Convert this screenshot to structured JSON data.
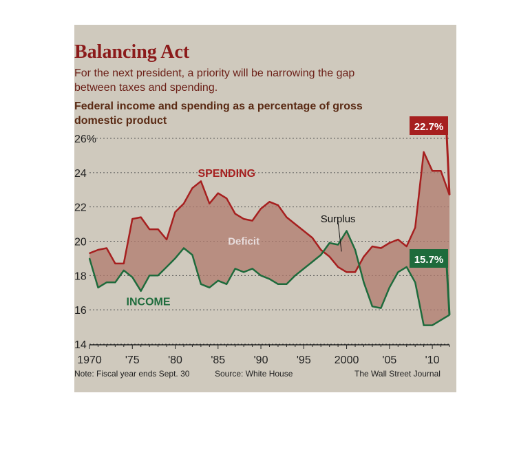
{
  "chart_data": {
    "type": "line",
    "title": "Balancing Act",
    "subtitle": "For the next president, a priority will be narrowing the gap between taxes and spending.",
    "description": "Federal income and spending as a percentage of gross domestic product",
    "y_ticks": [
      "26%",
      "24",
      "22",
      "20",
      "18",
      "16",
      "14"
    ],
    "x_ticks": [
      "1970",
      "'75",
      "'80",
      "'85",
      "'90",
      "'95",
      "2000",
      "'05",
      "'10"
    ],
    "ylim": [
      14,
      26
    ],
    "xlim": [
      1970,
      2012
    ],
    "grid": true,
    "x": [
      1970,
      1971,
      1972,
      1973,
      1974,
      1975,
      1976,
      1977,
      1978,
      1979,
      1980,
      1981,
      1982,
      1983,
      1984,
      1985,
      1986,
      1987,
      1988,
      1989,
      1990,
      1991,
      1992,
      1993,
      1994,
      1995,
      1996,
      1997,
      1998,
      1999,
      2000,
      2001,
      2002,
      2003,
      2004,
      2005,
      2006,
      2007,
      2008,
      2009,
      2010,
      2011,
      2012
    ],
    "series": [
      {
        "name": "SPENDING",
        "color": "#a61f1f",
        "values": [
          19.3,
          19.5,
          19.6,
          18.7,
          18.7,
          21.3,
          21.4,
          20.7,
          20.7,
          20.1,
          21.7,
          22.2,
          23.1,
          23.5,
          22.2,
          22.8,
          22.5,
          21.6,
          21.3,
          21.2,
          21.9,
          22.3,
          22.1,
          21.4,
          21.0,
          20.6,
          20.2,
          19.5,
          19.1,
          18.5,
          18.2,
          18.2,
          19.1,
          19.7,
          19.6,
          19.9,
          20.1,
          19.7,
          20.8,
          25.2,
          24.1,
          24.1,
          22.7
        ]
      },
      {
        "name": "INCOME",
        "color": "#1e6b3c",
        "values": [
          19.0,
          17.3,
          17.6,
          17.6,
          18.3,
          17.9,
          17.1,
          18.0,
          18.0,
          18.5,
          19.0,
          19.6,
          19.2,
          17.5,
          17.3,
          17.7,
          17.5,
          18.4,
          18.2,
          18.4,
          18.0,
          17.8,
          17.5,
          17.5,
          18.0,
          18.4,
          18.8,
          19.2,
          19.9,
          19.8,
          20.6,
          19.5,
          17.6,
          16.2,
          16.1,
          17.3,
          18.2,
          18.5,
          17.6,
          15.1,
          15.1,
          15.4,
          15.7
        ]
      }
    ],
    "labels": {
      "spending": "SPENDING",
      "income": "INCOME",
      "deficit": "Deficit",
      "surplus": "Surplus"
    },
    "end_labels": {
      "spending": "22.7%",
      "income": "15.7%"
    }
  },
  "notes": {
    "note": "Note: Fiscal year ends Sept. 30",
    "source": "Source: White House",
    "credit": "The Wall Street Journal"
  },
  "colors": {
    "background": "#cfc9bd",
    "spending": "#a61f1f",
    "income": "#1e6b3c",
    "gap_fill": "#b07a6e",
    "title": "#8b1a1a"
  }
}
